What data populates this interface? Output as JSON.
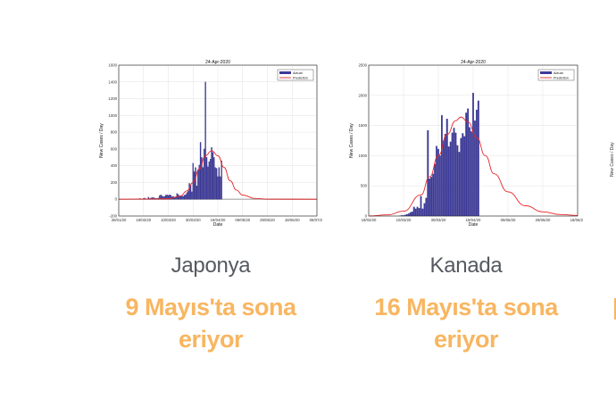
{
  "cards": [
    {
      "country": "Japonya",
      "status": "9 Mayıs'ta sona eriyor",
      "chart_data": {
        "type": "bar+line",
        "title": "24-Apr-2020",
        "xlabel": "Date",
        "ylabel": "New Cases / Day",
        "ylim": [
          -200,
          1600
        ],
        "yticks": [
          -200,
          0,
          200,
          400,
          600,
          800,
          1000,
          1200,
          1400,
          1600
        ],
        "xlim": [
          "2020-01-30",
          "2020-07-08"
        ],
        "xtick_labels": [
          "30/01/20",
          "19/02/20",
          "10/03/20",
          "30/03/20",
          "19/04/20",
          "09/05/20",
          "29/05/20",
          "18/06/20",
          "08/07/20"
        ],
        "grid": true,
        "legend": "top-right",
        "series": [
          {
            "name": "Actual",
            "kind": "bar",
            "color": "#3d3a9a",
            "start": "2020-02-14",
            "values": [
              5,
              0,
              10,
              5,
              0,
              10,
              15,
              5,
              0,
              25,
              10,
              15,
              20,
              20,
              15,
              10,
              10,
              15,
              45,
              55,
              40,
              30,
              35,
              50,
              55,
              45,
              55,
              50,
              30,
              35,
              25,
              25,
              70,
              60,
              40,
              35,
              45,
              35,
              50,
              55,
              80,
              95,
              190,
              170,
              90,
              430,
              330,
              380,
              160,
              350,
              410,
              680,
              500,
              380,
              600,
              1400,
              500,
              390,
              450,
              480,
              620,
              560,
              500,
              380,
              370,
              270,
              380,
              270,
              460
            ]
          },
          {
            "name": "Prediction",
            "kind": "line",
            "color": "#e8262a",
            "points": [
              [
                "2020-01-30",
                0
              ],
              [
                "2020-03-10",
                5
              ],
              [
                "2020-03-20",
                40
              ],
              [
                "2020-03-25",
                100
              ],
              [
                "2020-03-30",
                200
              ],
              [
                "2020-04-04",
                360
              ],
              [
                "2020-04-09",
                520
              ],
              [
                "2020-04-14",
                580
              ],
              [
                "2020-04-19",
                520
              ],
              [
                "2020-04-24",
                380
              ],
              [
                "2020-04-29",
                220
              ],
              [
                "2020-05-04",
                110
              ],
              [
                "2020-05-09",
                50
              ],
              [
                "2020-05-19",
                10
              ],
              [
                "2020-05-29",
                2
              ],
              [
                "2020-07-08",
                0
              ]
            ]
          }
        ]
      }
    },
    {
      "country": "Kanada",
      "status": "16 Mayıs'ta sona eriyor",
      "chart_data": {
        "type": "bar+line",
        "title": "24-Apr-2020",
        "xlabel": "Date",
        "ylabel": "New Cases / Day",
        "ylim": [
          0,
          2500
        ],
        "yticks": [
          0,
          500,
          1000,
          1500,
          2000,
          2500
        ],
        "xlim": [
          "2020-02-19",
          "2020-06-18"
        ],
        "xtick_labels": [
          "19/02/20",
          "10/03/20",
          "30/03/20",
          "19/04/20",
          "09/05/20",
          "29/05/20",
          "18/06/20"
        ],
        "grid": true,
        "legend": "top-right",
        "series": [
          {
            "name": "Actual",
            "kind": "bar",
            "color": "#3d3a9a",
            "start": "2020-03-08",
            "values": [
              5,
              10,
              10,
              20,
              30,
              40,
              60,
              70,
              150,
              120,
              150,
              130,
              330,
              120,
              210,
              300,
              1420,
              620,
              650,
              700,
              860,
              1160,
              1110,
              1000,
              1670,
              1250,
              1360,
              1610,
              1150,
              1230,
              1380,
              1460,
              1380,
              1170,
              1060,
              1290,
              1370,
              1320,
              1710,
              1780,
              1470,
              1400,
              2040,
              1580,
              1760,
              1910
            ]
          },
          {
            "name": "Prediction",
            "kind": "line",
            "color": "#e8262a",
            "points": [
              [
                "2020-02-19",
                0
              ],
              [
                "2020-03-01",
                20
              ],
              [
                "2020-03-10",
                80
              ],
              [
                "2020-03-20",
                350
              ],
              [
                "2020-03-25",
                650
              ],
              [
                "2020-03-30",
                1000
              ],
              [
                "2020-04-04",
                1350
              ],
              [
                "2020-04-09",
                1580
              ],
              [
                "2020-04-12",
                1640
              ],
              [
                "2020-04-16",
                1560
              ],
              [
                "2020-04-21",
                1300
              ],
              [
                "2020-04-26",
                1000
              ],
              [
                "2020-05-01",
                700
              ],
              [
                "2020-05-09",
                400
              ],
              [
                "2020-05-19",
                170
              ],
              [
                "2020-05-29",
                70
              ],
              [
                "2020-06-08",
                25
              ],
              [
                "2020-06-18",
                10
              ]
            ]
          }
        ]
      }
    }
  ],
  "partial_card": {
    "ylabel": "New Cases / Day"
  }
}
